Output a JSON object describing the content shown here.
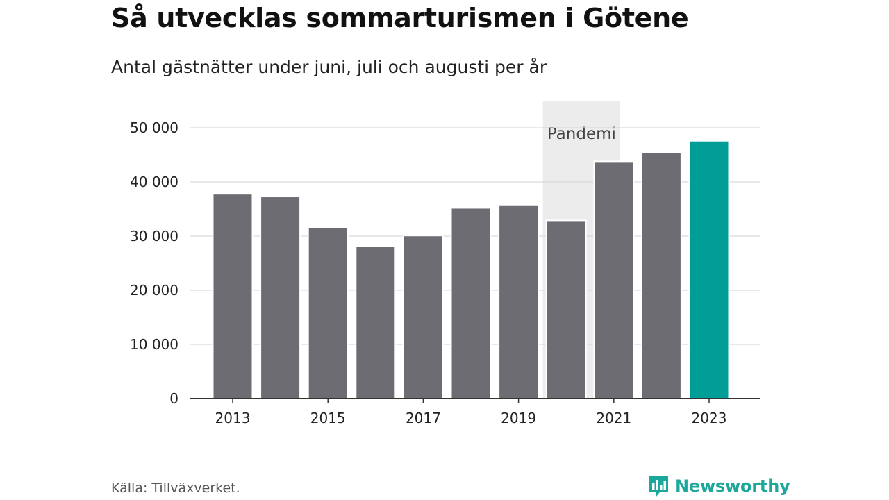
{
  "title": "Så utvecklas sommarturismen i Götene",
  "subtitle": "Antal gästnätter under juni, juli och augusti per år",
  "source": "Källa: Tillväxverket.",
  "brand": {
    "name": "Newsworthy",
    "icon": "newsworthy-logo-icon",
    "color": "#1ca79b"
  },
  "chart_data": {
    "type": "bar",
    "title": "Så utvecklas sommarturismen i Götene",
    "subtitle": "Antal gästnätter under juni, juli och augusti per år",
    "categories": [
      "2013",
      "2014",
      "2015",
      "2016",
      "2017",
      "2018",
      "2019",
      "2020",
      "2021",
      "2022",
      "2023"
    ],
    "values": [
      37800,
      37300,
      31600,
      28200,
      30100,
      35200,
      35800,
      32900,
      43800,
      45500,
      47600
    ],
    "x_tick_labels": [
      "2013",
      "2015",
      "2017",
      "2019",
      "2021",
      "2023"
    ],
    "y_ticks": [
      0,
      10000,
      20000,
      30000,
      40000,
      50000
    ],
    "y_tick_labels": [
      "0",
      "10 000",
      "20 000",
      "30 000",
      "40 000",
      "50 000"
    ],
    "ylim": [
      0,
      50000
    ],
    "grid": true,
    "colors": {
      "default": "#6d6c73",
      "highlight": "#009e96",
      "band": "#ececec"
    },
    "highlight_category": "2023",
    "annotation": {
      "label": "Pandemi",
      "from": "2020",
      "to": "2021"
    }
  }
}
